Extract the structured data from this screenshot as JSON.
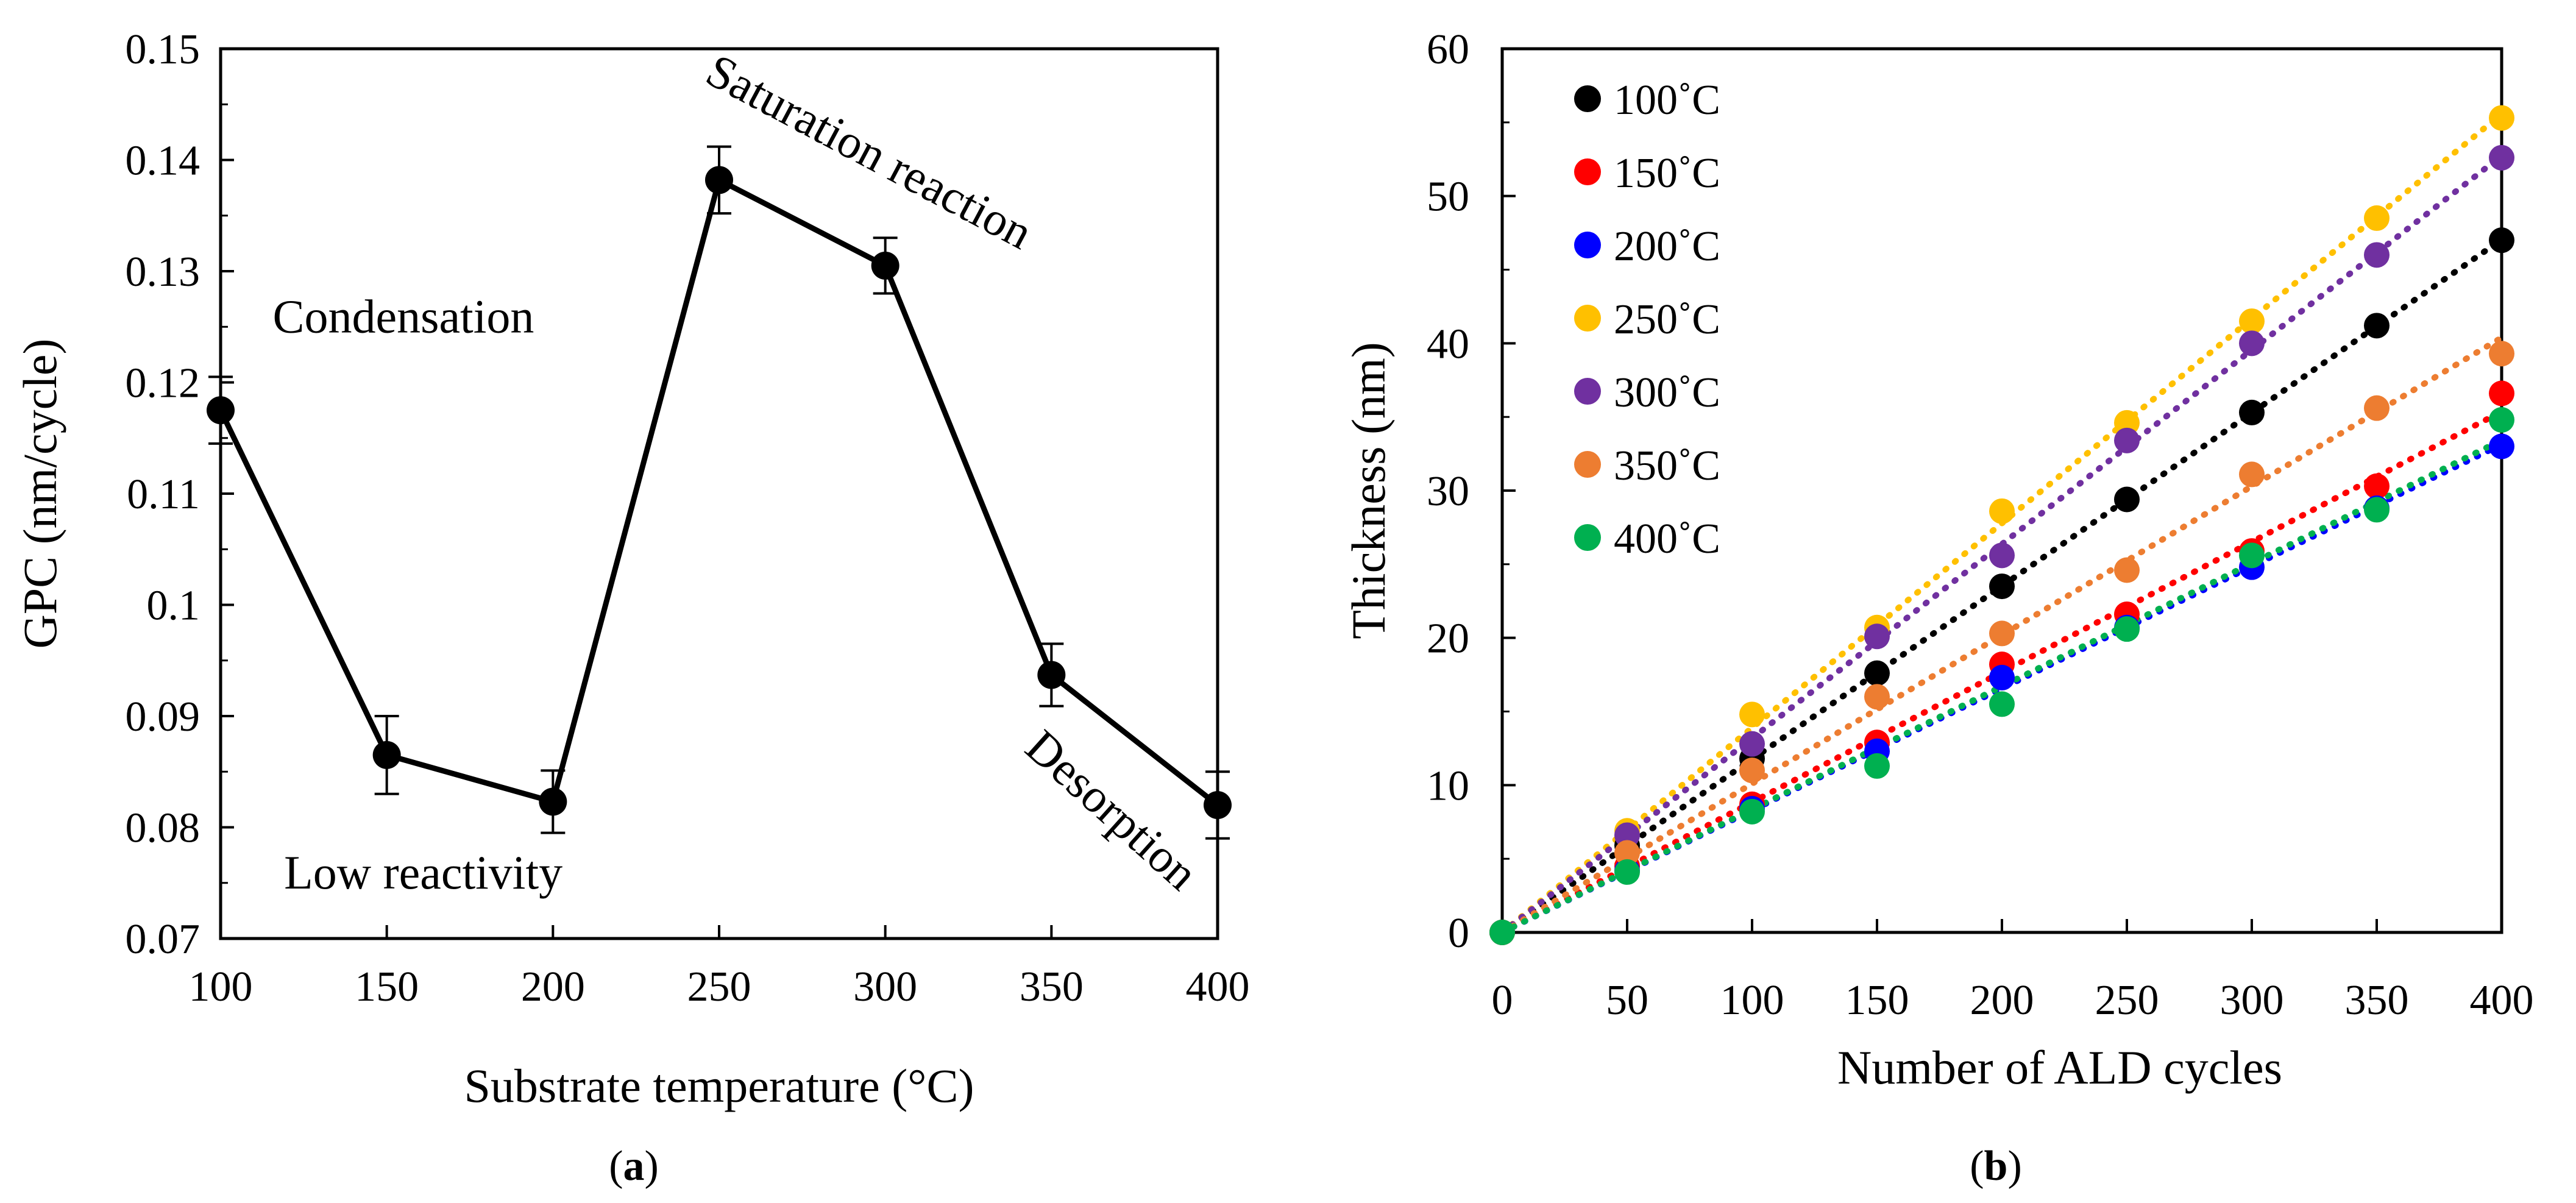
{
  "chart_data": [
    {
      "panel": "a",
      "type": "line",
      "caption_letter": "a",
      "xlabel": "Substrate temperature (°C)",
      "ylabel": "GPC (nm/cycle)",
      "xlim": [
        100,
        400
      ],
      "ylim": [
        0.07,
        0.15
      ],
      "x_ticks": [
        100,
        150,
        200,
        250,
        300,
        350,
        400
      ],
      "x_tick_labels": [
        "100",
        "150",
        "200",
        "250",
        "300",
        "350",
        "400"
      ],
      "y_ticks": [
        0.07,
        0.08,
        0.09,
        0.1,
        0.11,
        0.12,
        0.13,
        0.14,
        0.15
      ],
      "y_tick_labels": [
        "0.07",
        "0.08",
        "0.09",
        "0.1",
        "0.11",
        "0.12",
        "0.13",
        "0.14",
        "0.15"
      ],
      "grid": false,
      "x": [
        100,
        150,
        200,
        250,
        300,
        350,
        400
      ],
      "y": [
        0.1175,
        0.0865,
        0.0823,
        0.1382,
        0.1305,
        0.0937,
        0.082
      ],
      "errors": [
        0.003,
        0.0035,
        0.0028,
        0.003,
        0.0025,
        0.0028,
        0.003
      ],
      "annotations": [
        {
          "text": "Condensation",
          "x": 155,
          "y": 0.1245,
          "rotate": 0
        },
        {
          "text": "Low reactivity",
          "x": 161,
          "y": 0.0745,
          "rotate": 0
        },
        {
          "text": "Saturation reaction",
          "x": 293,
          "y": 0.1395,
          "rotate": 28
        },
        {
          "text": "Desorption",
          "x": 365,
          "y": 0.0805,
          "rotate": 42
        }
      ]
    },
    {
      "panel": "b",
      "type": "scatter",
      "caption_letter": "b",
      "xlabel": "Number of ALD cycles",
      "ylabel": "Thickness (nm)",
      "xlim": [
        0,
        400
      ],
      "ylim": [
        0,
        60
      ],
      "x_ticks": [
        0,
        50,
        100,
        150,
        200,
        250,
        300,
        350,
        400
      ],
      "x_tick_labels": [
        "0",
        "50",
        "100",
        "150",
        "200",
        "250",
        "300",
        "350",
        "400"
      ],
      "y_ticks": [
        0,
        10,
        20,
        30,
        40,
        50,
        60
      ],
      "y_tick_labels": [
        "0",
        "10",
        "20",
        "30",
        "40",
        "50",
        "60"
      ],
      "grid": false,
      "legend_position": "top-left",
      "trendline": "linear dotted",
      "x": [
        0,
        50,
        100,
        150,
        200,
        250,
        300,
        350,
        400
      ],
      "series": [
        {
          "name": "100˚C",
          "color": "#000000",
          "values": [
            0,
            5.9,
            11.8,
            17.6,
            23.5,
            29.4,
            35.3,
            41.2,
            47.0
          ]
        },
        {
          "name": "150˚C",
          "color": "#ff0000",
          "values": [
            0,
            4.5,
            8.7,
            12.9,
            18.2,
            21.6,
            25.9,
            30.3,
            36.6
          ]
        },
        {
          "name": "200˚C",
          "color": "#0000ff",
          "values": [
            0,
            4.2,
            8.4,
            12.3,
            17.3,
            20.7,
            24.8,
            28.8,
            33.0
          ]
        },
        {
          "name": "250˚C",
          "color": "#ffc000",
          "values": [
            0,
            6.9,
            14.8,
            20.7,
            28.6,
            34.6,
            41.5,
            48.5,
            55.3
          ]
        },
        {
          "name": "300˚C",
          "color": "#7030a0",
          "values": [
            0,
            6.6,
            12.8,
            20.1,
            25.6,
            33.4,
            40.0,
            46.0,
            52.6
          ]
        },
        {
          "name": "350˚C",
          "color": "#ed7d31",
          "values": [
            0,
            5.4,
            11.0,
            16.0,
            20.3,
            24.6,
            31.1,
            35.6,
            39.3
          ]
        },
        {
          "name": "400˚C",
          "color": "#00b050",
          "values": [
            0,
            4.1,
            8.2,
            11.3,
            15.5,
            20.6,
            25.6,
            28.7,
            34.8
          ]
        }
      ]
    }
  ]
}
